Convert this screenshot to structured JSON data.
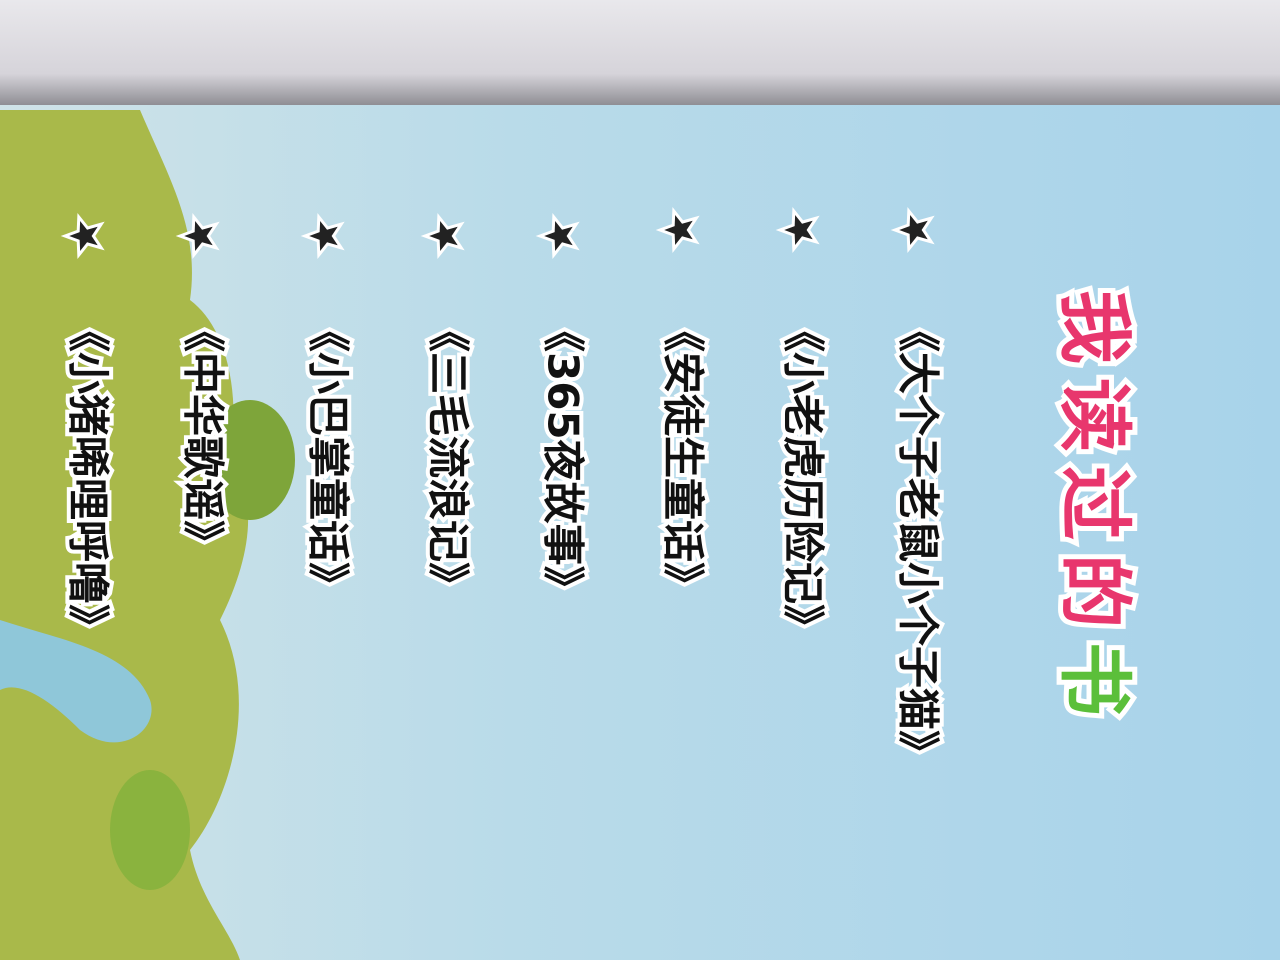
{
  "title": "我读过的书",
  "books": [
    "《大个子老鼠小个子猫》",
    "《小老虎历险记》",
    "《安徒生童话》",
    "《365夜故事》",
    "《三毛流浪记》",
    "《小巴掌童话》",
    "《中华歌谣》",
    "《小猪唏哩呼噜》"
  ]
}
